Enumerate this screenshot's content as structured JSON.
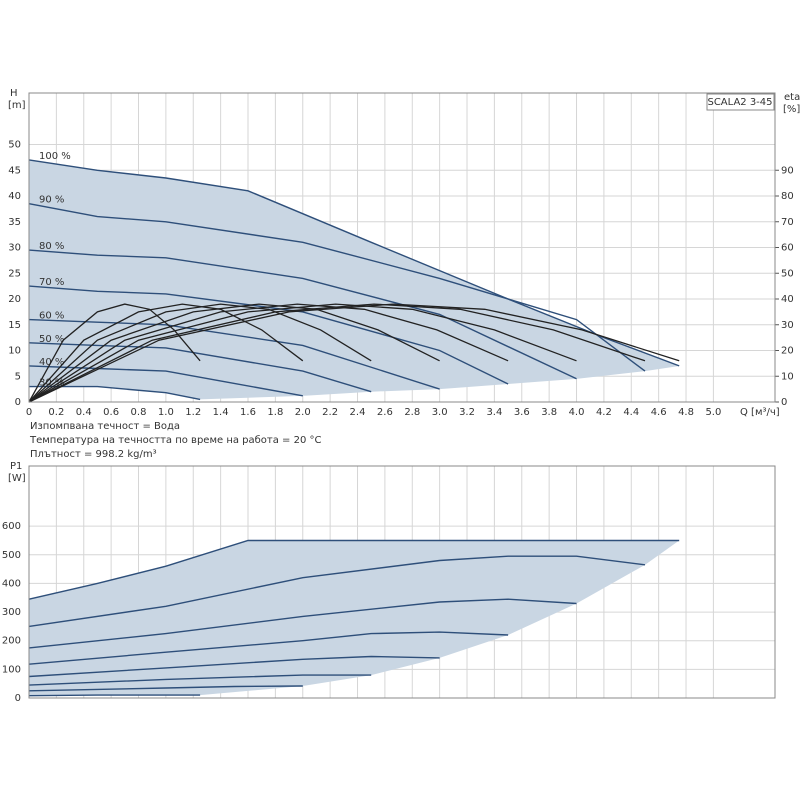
{
  "chart_data": [
    {
      "type": "line",
      "model": "SCALA2 3-45",
      "ylabel": "H",
      "yunit": "[m]",
      "y2label": "eta",
      "y2unit": "[%]",
      "xlabel": "Q [м³/ч]",
      "notes": [
        "Изпомпвана течност = Вода",
        "Температура на течността по време на работа = 20 °C",
        "Плътност = 998.2 kg/m³"
      ],
      "xlim": [
        0,
        5.45
      ],
      "ylim": [
        0,
        60
      ],
      "y2lim": [
        0,
        120
      ],
      "xticks": [
        0,
        0.2,
        0.4,
        0.6,
        0.8,
        {
          "value": 1,
          "label": "1.0"
        },
        1.2,
        1.4,
        1.6,
        1.8,
        {
          "value": 2,
          "label": "2.0"
        },
        2.2,
        2.4,
        2.6,
        2.8,
        {
          "value": 3,
          "label": "3.0"
        },
        3.2,
        3.4,
        3.6,
        3.8,
        {
          "value": 4,
          "label": "4.0"
        },
        4.2,
        4.4,
        4.6,
        4.8,
        {
          "value": 5,
          "label": "5.0"
        }
      ],
      "yticks": [
        0,
        5,
        10,
        15,
        20,
        25,
        30,
        35,
        40,
        45,
        50
      ],
      "y2ticks": [
        0,
        10,
        20,
        30,
        40,
        50,
        60,
        70,
        80,
        90
      ],
      "grid": true,
      "fill_color": "#c9d6e3",
      "series": [
        {
          "name": "100 %",
          "color": "#2e4f7a",
          "x": [
            0,
            0.5,
            1.0,
            1.6,
            2.5,
            3.5,
            4.2,
            4.75
          ],
          "values": [
            47,
            45,
            43.5,
            41,
            31,
            20,
            12.5,
            7
          ]
        },
        {
          "name": "90 %",
          "color": "#2e4f7a",
          "x": [
            0,
            0.5,
            1.0,
            2.0,
            3.0,
            4.0,
            4.5
          ],
          "values": [
            38.5,
            36,
            35,
            31,
            24,
            16,
            6
          ]
        },
        {
          "name": "80 %",
          "color": "#2e4f7a",
          "x": [
            0,
            0.5,
            1.0,
            2.0,
            3.0,
            4.0
          ],
          "values": [
            29.5,
            28.5,
            28,
            24,
            17,
            4.5
          ]
        },
        {
          "name": "70 %",
          "color": "#2e4f7a",
          "x": [
            0,
            0.5,
            1.0,
            2.0,
            3.0,
            3.5
          ],
          "values": [
            22.5,
            21.5,
            21,
            17.5,
            10,
            3.5
          ]
        },
        {
          "name": "60 %",
          "color": "#2e4f7a",
          "x": [
            0,
            0.5,
            1.0,
            2.0,
            3.0
          ],
          "values": [
            16,
            15.5,
            15,
            11,
            2.5
          ]
        },
        {
          "name": "50 %",
          "color": "#2e4f7a",
          "x": [
            0,
            0.5,
            1.0,
            2.0,
            2.5
          ],
          "values": [
            11.5,
            11,
            10.5,
            6,
            2
          ]
        },
        {
          "name": "40 %",
          "color": "#2e4f7a",
          "x": [
            0,
            0.5,
            1.0,
            2.0
          ],
          "values": [
            7,
            6.5,
            6,
            1.2
          ]
        },
        {
          "name": "30 %",
          "color": "#2e4f7a",
          "x": [
            0,
            0.5,
            1.0,
            1.25
          ],
          "values": [
            3,
            3,
            1.8,
            0.5
          ]
        },
        {
          "axis": "y2",
          "color": "#222222",
          "x": [
            0,
            0.95,
            1.9,
            2.66,
            3.33,
            4.04,
            4.75
          ],
          "values": [
            0,
            24,
            35,
            38,
            36,
            28,
            16
          ]
        },
        {
          "axis": "y2",
          "color": "#222222",
          "x": [
            0,
            0.9,
            1.8,
            2.52,
            3.15,
            3.83,
            4.5
          ],
          "values": [
            0,
            24,
            35,
            38,
            36,
            28,
            16
          ]
        },
        {
          "axis": "y2",
          "color": "#222222",
          "x": [
            0,
            0.8,
            1.6,
            2.24,
            2.8,
            3.4,
            4.0
          ],
          "values": [
            0,
            24,
            35,
            38,
            36,
            28,
            16
          ]
        },
        {
          "axis": "y2",
          "color": "#222222",
          "x": [
            0,
            0.7,
            1.4,
            1.96,
            2.45,
            2.98,
            3.5
          ],
          "values": [
            0,
            24,
            35,
            38,
            36,
            28,
            16
          ]
        },
        {
          "axis": "y2",
          "color": "#222222",
          "x": [
            0,
            0.6,
            1.2,
            1.68,
            2.1,
            2.55,
            3.0
          ],
          "values": [
            0,
            24,
            35,
            38,
            36,
            28,
            16
          ]
        },
        {
          "axis": "y2",
          "color": "#222222",
          "x": [
            0,
            0.5,
            1.0,
            1.4,
            1.75,
            2.13,
            2.5
          ],
          "values": [
            0,
            24,
            35,
            38,
            36,
            28,
            16
          ]
        },
        {
          "axis": "y2",
          "color": "#222222",
          "x": [
            0,
            0.4,
            0.8,
            1.12,
            1.4,
            1.7,
            2.0
          ],
          "values": [
            0,
            24,
            35,
            38,
            36,
            28,
            16
          ]
        },
        {
          "axis": "y2",
          "color": "#222222",
          "x": [
            0,
            0.25,
            0.5,
            0.7,
            0.88,
            1.06,
            1.25
          ],
          "values": [
            0,
            24,
            35,
            38,
            36,
            28,
            16
          ]
        }
      ]
    },
    {
      "type": "line",
      "ylabel": "P1",
      "yunit": "[W]",
      "xlim": [
        0,
        5.45
      ],
      "ylim": [
        0,
        810
      ],
      "yticks": [
        0,
        100,
        200,
        300,
        400,
        500,
        600
      ],
      "grid": true,
      "fill_color": "#c9d6e3",
      "series": [
        {
          "color": "#2e4f7a",
          "x": [
            0,
            0.5,
            1.0,
            1.6,
            4.75
          ],
          "values": [
            345,
            400,
            460,
            550,
            550
          ]
        },
        {
          "color": "#2e4f7a",
          "x": [
            0,
            1.0,
            2.0,
            3.0,
            3.5,
            4.0,
            4.5
          ],
          "values": [
            250,
            320,
            420,
            480,
            495,
            495,
            465
          ]
        },
        {
          "color": "#2e4f7a",
          "x": [
            0,
            1.0,
            2.0,
            3.0,
            3.5,
            4.0
          ],
          "values": [
            175,
            225,
            285,
            335,
            345,
            330
          ]
        },
        {
          "color": "#2e4f7a",
          "x": [
            0,
            1.0,
            2.0,
            2.5,
            3.0,
            3.5
          ],
          "values": [
            118,
            160,
            200,
            225,
            230,
            220
          ]
        },
        {
          "color": "#2e4f7a",
          "x": [
            0,
            1.0,
            2.0,
            2.5,
            3.0
          ],
          "values": [
            75,
            105,
            135,
            145,
            140
          ]
        },
        {
          "color": "#2e4f7a",
          "x": [
            0,
            1.0,
            2.0,
            2.5
          ],
          "values": [
            45,
            65,
            80,
            80
          ]
        },
        {
          "color": "#2e4f7a",
          "x": [
            0,
            1.0,
            1.5,
            2.0
          ],
          "values": [
            25,
            35,
            40,
            42
          ]
        },
        {
          "color": "#2e4f7a",
          "x": [
            0,
            0.5,
            1.25
          ],
          "values": [
            8,
            10,
            10
          ]
        }
      ]
    }
  ]
}
